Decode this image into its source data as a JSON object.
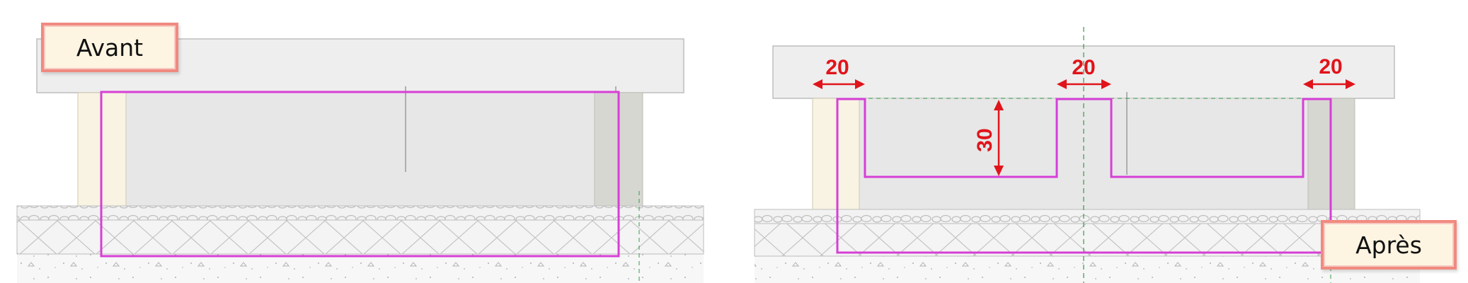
{
  "labels": {
    "before": "Avant",
    "after": "Après"
  },
  "dimensions": {
    "left_width": "20",
    "center_width": "20",
    "right_width": "20",
    "depth": "30"
  },
  "colors": {
    "cut_outline": "#d63fd6",
    "dimension": "#e0141b",
    "axis": "#3a9a4a",
    "label_border": "#f08a80",
    "label_fill": "#fdf5e2"
  }
}
